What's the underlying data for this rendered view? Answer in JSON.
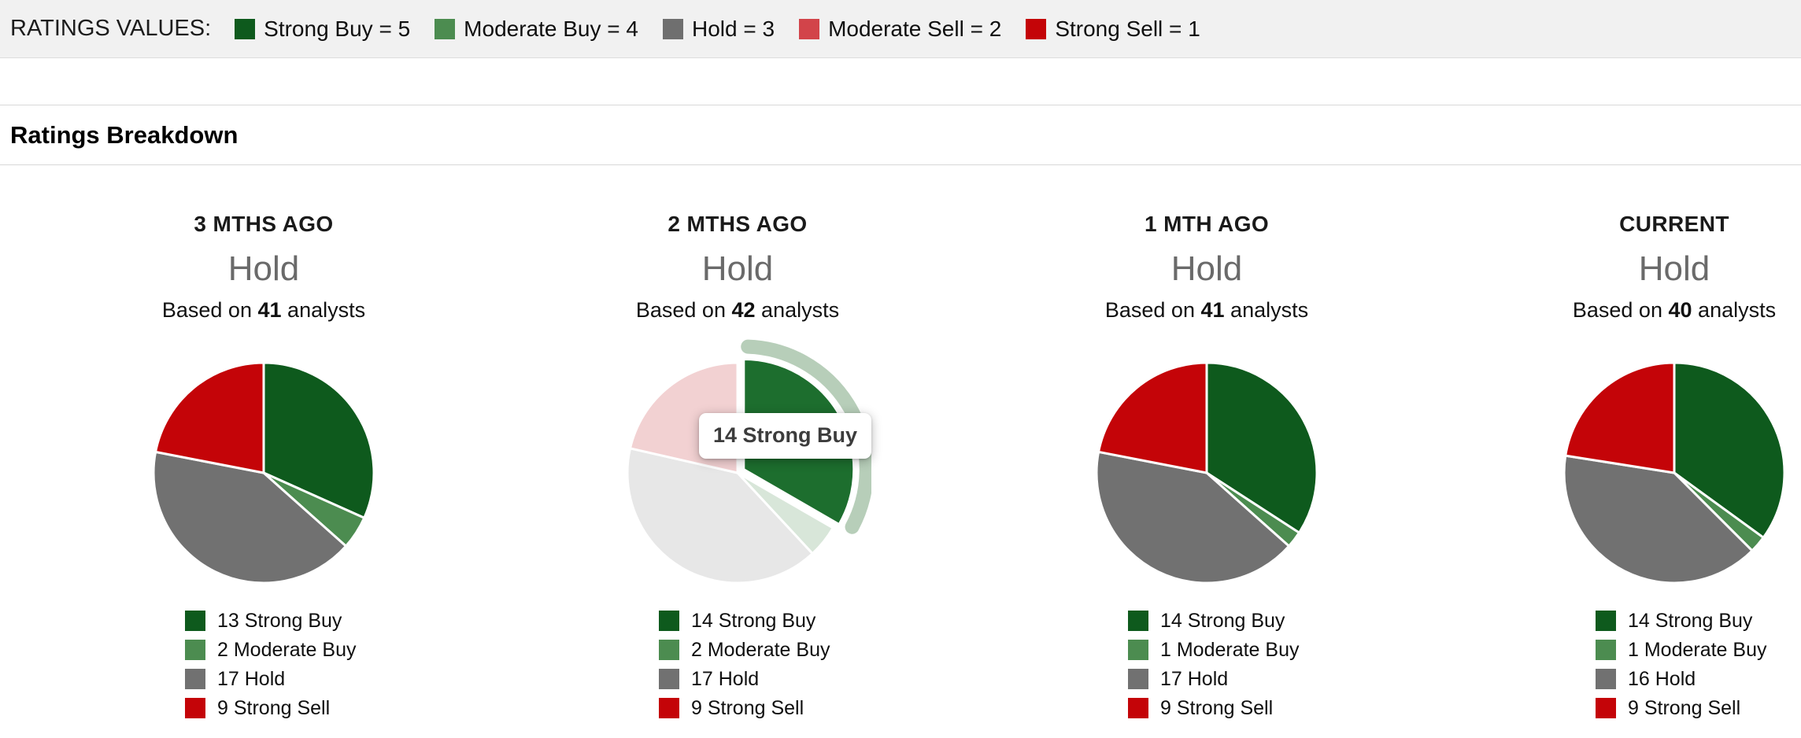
{
  "ratings_values_bar": {
    "title": "RATINGS VALUES:",
    "items": [
      {
        "label": "Strong Buy = 5",
        "color": "#0e5a1d"
      },
      {
        "label": "Moderate Buy = 4",
        "color": "#4c8c50"
      },
      {
        "label": "Hold = 3",
        "color": "#6f6f6f"
      },
      {
        "label": "Moderate Sell = 2",
        "color": "#d2444a"
      },
      {
        "label": "Strong Sell = 1",
        "color": "#c40408"
      }
    ]
  },
  "section": {
    "title": "Ratings Breakdown"
  },
  "chart_data": [
    {
      "type": "pie",
      "title": "3 MTHS AGO",
      "consensus": "Hold",
      "based_on_prefix": "Based on",
      "analysts_count": 41,
      "based_on_suffix": "analysts",
      "slices": [
        {
          "label": "Strong Buy",
          "value": 13,
          "color": "#0e5a1d",
          "legend_label": "13 Strong Buy"
        },
        {
          "label": "Moderate Buy",
          "value": 2,
          "color": "#4c8c50",
          "legend_label": "2 Moderate Buy"
        },
        {
          "label": "Hold",
          "value": 17,
          "color": "#717171",
          "legend_label": "17 Hold"
        },
        {
          "label": "Strong Sell",
          "value": 9,
          "color": "#c40408",
          "legend_label": "9 Strong Sell"
        }
      ]
    },
    {
      "type": "pie",
      "title": "2 MTHS AGO",
      "consensus": "Hold",
      "based_on_prefix": "Based on",
      "analysts_count": 42,
      "based_on_suffix": "analysts",
      "hover": {
        "active_slice": "Strong Buy",
        "tooltip": "14 Strong Buy",
        "halo_color": "#b7ceb9"
      },
      "slices": [
        {
          "label": "Strong Buy",
          "value": 14,
          "color": "#0e5a1d",
          "display_color": "#1d6e2e",
          "legend_label": "14 Strong Buy"
        },
        {
          "label": "Moderate Buy",
          "value": 2,
          "color": "#4c8c50",
          "display_color": "#d8e6d9",
          "legend_label": "2 Moderate Buy"
        },
        {
          "label": "Hold",
          "value": 17,
          "color": "#717171",
          "display_color": "#e7e7e7",
          "legend_label": "17 Hold"
        },
        {
          "label": "Strong Sell",
          "value": 9,
          "color": "#c40408",
          "display_color": "#f2d1d2",
          "legend_label": "9 Strong Sell"
        }
      ]
    },
    {
      "type": "pie",
      "title": "1 MTH AGO",
      "consensus": "Hold",
      "based_on_prefix": "Based on",
      "analysts_count": 41,
      "based_on_suffix": "analysts",
      "slices": [
        {
          "label": "Strong Buy",
          "value": 14,
          "color": "#0e5a1d",
          "legend_label": "14 Strong Buy"
        },
        {
          "label": "Moderate Buy",
          "value": 1,
          "color": "#4c8c50",
          "legend_label": "1 Moderate Buy"
        },
        {
          "label": "Hold",
          "value": 17,
          "color": "#717171",
          "legend_label": "17 Hold"
        },
        {
          "label": "Strong Sell",
          "value": 9,
          "color": "#c40408",
          "legend_label": "9 Strong Sell"
        }
      ]
    },
    {
      "type": "pie",
      "title": "CURRENT",
      "consensus": "Hold",
      "based_on_prefix": "Based on",
      "analysts_count": 40,
      "based_on_suffix": "analysts",
      "slices": [
        {
          "label": "Strong Buy",
          "value": 14,
          "color": "#0e5a1d",
          "legend_label": "14 Strong Buy"
        },
        {
          "label": "Moderate Buy",
          "value": 1,
          "color": "#4c8c50",
          "legend_label": "1 Moderate Buy"
        },
        {
          "label": "Hold",
          "value": 16,
          "color": "#717171",
          "legend_label": "16 Hold"
        },
        {
          "label": "Strong Sell",
          "value": 9,
          "color": "#c40408",
          "legend_label": "9 Strong Sell"
        }
      ]
    }
  ]
}
